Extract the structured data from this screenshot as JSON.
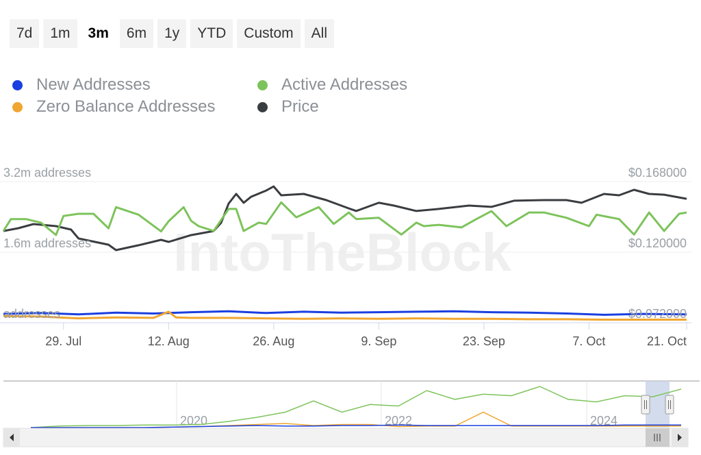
{
  "range_buttons": [
    {
      "label": "7d"
    },
    {
      "label": "1m"
    },
    {
      "label": "3m",
      "selected": true
    },
    {
      "label": "6m"
    },
    {
      "label": "1y"
    },
    {
      "label": "YTD"
    },
    {
      "label": "Custom"
    },
    {
      "label": "All"
    }
  ],
  "legend": [
    {
      "label": "New Addresses",
      "color": "#1a3fe0"
    },
    {
      "label": "Active Addresses",
      "color": "#7dc35b"
    },
    {
      "label": "Zero Balance Addresses",
      "color": "#f0a630"
    },
    {
      "label": "Price",
      "color": "#3a3d40"
    }
  ],
  "watermark": "IntoTheBlock",
  "chart_data": {
    "type": "line",
    "x_unit": "days since 21 Jul",
    "xlim": [
      0,
      91
    ],
    "x_ticks": [
      {
        "day": 8,
        "label": "29. Jul"
      },
      {
        "day": 22,
        "label": "12. Aug"
      },
      {
        "day": 36,
        "label": "26. Aug"
      },
      {
        "day": 50,
        "label": "9. Sep"
      },
      {
        "day": 64,
        "label": "23. Sep"
      },
      {
        "day": 78,
        "label": "7. Oct"
      },
      {
        "day": 92,
        "label": "21. Oct"
      }
    ],
    "left_axis": {
      "ylim": [
        0,
        3.2
      ],
      "ticks": [
        {
          "v": 3.2,
          "label": "3.2m addresses"
        },
        {
          "v": 1.6,
          "label": "1.6m addresses"
        },
        {
          "v": 0,
          "label": "addresses"
        }
      ]
    },
    "right_axis": {
      "ylim": [
        0.072,
        0.168
      ],
      "ticks": [
        {
          "v": 0.168,
          "label": "$0.168000"
        },
        {
          "v": 0.12,
          "label": "$0.120000"
        },
        {
          "v": 0.072,
          "label": "$0.072000"
        }
      ]
    },
    "series": [
      {
        "name": "Price",
        "axis": "right",
        "color": "#3a3d40",
        "x": [
          0,
          2,
          4,
          7,
          9,
          10,
          14,
          15,
          18,
          21,
          22,
          25,
          28,
          29,
          30,
          31,
          32,
          33,
          35,
          36,
          37,
          40,
          43,
          46,
          47,
          50,
          52,
          55,
          58,
          62,
          65,
          68,
          72,
          75,
          77,
          80,
          82,
          84,
          86,
          88,
          91
        ],
        "y": [
          0.1344,
          0.1363,
          0.1391,
          0.1377,
          0.1354,
          0.1293,
          0.1251,
          0.1214,
          0.1247,
          0.1284,
          0.127,
          0.1316,
          0.1344,
          0.14,
          0.1531,
          0.1596,
          0.1536,
          0.1577,
          0.1619,
          0.1647,
          0.1587,
          0.1596,
          0.1554,
          0.1498,
          0.148,
          0.1536,
          0.1517,
          0.148,
          0.1494,
          0.1517,
          0.1508,
          0.155,
          0.1554,
          0.1554,
          0.1536,
          0.1596,
          0.1587,
          0.1624,
          0.1596,
          0.1591,
          0.1563
        ]
      },
      {
        "name": "Active Addresses",
        "axis": "left",
        "color": "#7dc35b",
        "x": [
          0,
          1,
          3,
          5,
          7,
          8,
          10,
          12,
          14,
          15,
          18,
          21,
          22,
          24,
          25,
          26,
          28,
          30,
          31,
          32,
          34,
          35,
          37,
          39,
          42,
          44,
          46,
          47,
          50,
          53,
          55,
          56,
          58,
          61,
          63,
          65,
          67,
          70,
          72,
          75,
          78,
          79,
          82,
          84,
          86,
          88,
          90,
          91
        ],
        "y": [
          2.08,
          2.35,
          2.35,
          2.27,
          1.99,
          2.42,
          2.47,
          2.47,
          2.14,
          2.62,
          2.45,
          2.07,
          2.3,
          2.62,
          2.31,
          2.19,
          2.08,
          2.58,
          2.58,
          2.08,
          2.27,
          2.24,
          2.73,
          2.39,
          2.62,
          2.24,
          2.5,
          2.35,
          2.38,
          2.0,
          2.27,
          2.19,
          2.22,
          2.16,
          2.35,
          2.53,
          2.19,
          2.5,
          2.5,
          2.38,
          2.19,
          2.45,
          2.35,
          2.0,
          2.5,
          2.08,
          2.47,
          2.5
        ]
      },
      {
        "name": "New Addresses",
        "axis": "left",
        "color": "#1a3fe0",
        "x": [
          0,
          5,
          10,
          15,
          20,
          25,
          30,
          35,
          40,
          45,
          50,
          55,
          60,
          65,
          70,
          75,
          80,
          85,
          91
        ],
        "y": [
          0.2,
          0.22,
          0.19,
          0.23,
          0.21,
          0.24,
          0.26,
          0.22,
          0.25,
          0.23,
          0.24,
          0.25,
          0.26,
          0.24,
          0.23,
          0.21,
          0.18,
          0.2,
          0.19
        ]
      },
      {
        "name": "Zero Balance Addresses",
        "axis": "left",
        "color": "#f0a630",
        "x": [
          0,
          5,
          10,
          15,
          20,
          22,
          23,
          25,
          30,
          35,
          40,
          45,
          50,
          55,
          60,
          65,
          70,
          75,
          80,
          85,
          91
        ],
        "y": [
          0.15,
          0.14,
          0.1,
          0.12,
          0.11,
          0.25,
          0.12,
          0.11,
          0.11,
          0.1,
          0.09,
          0.1,
          0.09,
          0.1,
          0.09,
          0.09,
          0.08,
          0.08,
          0.07,
          0.07,
          0.07
        ]
      }
    ],
    "navigator": {
      "x_ticks": [
        "2020",
        "2022",
        "2024"
      ],
      "active": [
        0,
        0.03,
        0.04,
        0.04,
        0.05,
        0.05,
        0.06,
        0.12,
        0.2,
        0.3,
        0.52,
        0.3,
        0.45,
        0.42,
        0.72,
        0.55,
        0.65,
        0.62,
        0.8,
        0.55,
        0.5,
        0.62,
        0.6,
        0.75
      ],
      "zero": [
        0,
        0,
        0,
        0,
        0,
        0.01,
        0.02,
        0.04,
        0.06,
        0.08,
        0.04,
        0.06,
        0.06,
        0.02,
        0.03,
        0.03,
        0.3,
        0.03,
        0.03,
        0.03,
        0.03,
        0.03,
        0.03,
        0.03
      ],
      "new": [
        0,
        0,
        0,
        0,
        0,
        0.01,
        0.02,
        0.03,
        0.04,
        0.03,
        0.03,
        0.04,
        0.04,
        0.05,
        0.04,
        0.04,
        0.04,
        0.04,
        0.04,
        0.04,
        0.04,
        0.05,
        0.05,
        0.05
      ]
    }
  }
}
